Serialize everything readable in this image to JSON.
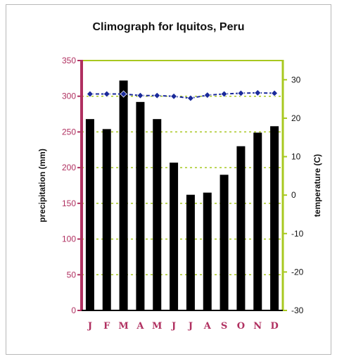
{
  "chart_data": {
    "type": "bar+line",
    "title": "Climograph for Iquitos, Peru",
    "categories": [
      "J",
      "F",
      "M",
      "A",
      "M",
      "J",
      "J",
      "A",
      "S",
      "O",
      "N",
      "D"
    ],
    "precipitation": {
      "label": "precipitation (mm)",
      "values": [
        268,
        254,
        322,
        292,
        268,
        207,
        162,
        165,
        190,
        230,
        249,
        258
      ],
      "ylim": [
        0,
        350
      ],
      "ticks": [
        0,
        50,
        100,
        150,
        200,
        250,
        300,
        350
      ],
      "color": "#000000"
    },
    "temperature": {
      "label": "temperature (C)",
      "values": [
        26.3,
        26.3,
        26.3,
        25.9,
        25.9,
        25.7,
        25.2,
        26.0,
        26.3,
        26.5,
        26.6,
        26.5
      ],
      "ylim": [
        -30,
        35
      ],
      "ticks": [
        -30,
        -20,
        -10,
        0,
        10,
        20,
        30
      ],
      "color": "#1a2a9a"
    },
    "colors": {
      "left_axis": "#b03060",
      "right_axis": "#a8c820",
      "grid": "#a8c820"
    },
    "grid": true
  }
}
